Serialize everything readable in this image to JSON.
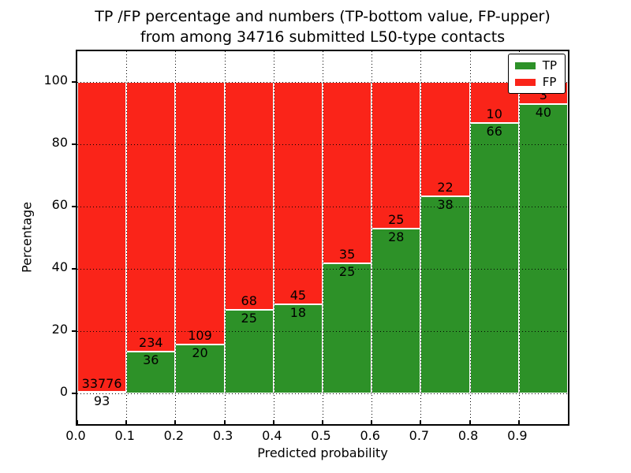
{
  "title": {
    "line1": "TP /FP percentage and numbers (TP-bottom value, FP-upper)",
    "line2": "from among 34716 submitted L50-type contacts"
  },
  "axes": {
    "xlabel": "Predicted probability",
    "ylabel": "Percentage",
    "yticks": [
      0,
      20,
      40,
      60,
      80,
      100
    ],
    "xtick_labels": [
      "0.0",
      "0.1",
      "0.2",
      "0.3",
      "0.4",
      "0.5",
      "0.6",
      "0.7",
      "0.8",
      "0.9"
    ],
    "ylim": [
      -10,
      110
    ],
    "xlim": [
      0,
      1
    ],
    "grid": "dotted, both axes"
  },
  "legend": {
    "position": "upper right",
    "items": [
      {
        "label": "TP",
        "color": "#2d9128"
      },
      {
        "label": "FP",
        "color": "#fa2419"
      }
    ]
  },
  "colors": {
    "tp_green": "#2d9128",
    "fp_red": "#fa2419",
    "bar_edge": "#ffffff",
    "grid": "#000000",
    "background": "#ffffff",
    "text": "#000000"
  },
  "chart_data": {
    "type": "bar",
    "stacked": true,
    "normalized_to_percent": true,
    "title": "TP /FP percentage and numbers (TP-bottom value, FP-upper) from among 34716 submitted L50-type contacts",
    "xlabel": "Predicted probability",
    "ylabel": "Percentage",
    "categories": [
      "0.0-0.1",
      "0.1-0.2",
      "0.2-0.3",
      "0.3-0.4",
      "0.4-0.5",
      "0.5-0.6",
      "0.6-0.7",
      "0.7-0.8",
      "0.8-0.9",
      "0.9-1.0"
    ],
    "series": [
      {
        "name": "TP",
        "color": "#2d9128",
        "counts": [
          93,
          36,
          20,
          25,
          18,
          25,
          28,
          38,
          66,
          40
        ],
        "percent": [
          0.27,
          13.33,
          15.5,
          26.88,
          28.57,
          41.67,
          52.83,
          63.33,
          86.84,
          93.02
        ]
      },
      {
        "name": "FP",
        "color": "#fa2419",
        "counts": [
          33776,
          234,
          109,
          68,
          45,
          35,
          25,
          22,
          10,
          3
        ],
        "percent": [
          99.73,
          86.67,
          84.5,
          73.12,
          71.43,
          58.33,
          47.17,
          36.67,
          13.16,
          6.98
        ]
      }
    ],
    "total_submitted": 34716,
    "ylim": [
      -10,
      110
    ],
    "xlim": [
      0,
      1
    ],
    "legend_position": "upper right",
    "grid": true
  }
}
